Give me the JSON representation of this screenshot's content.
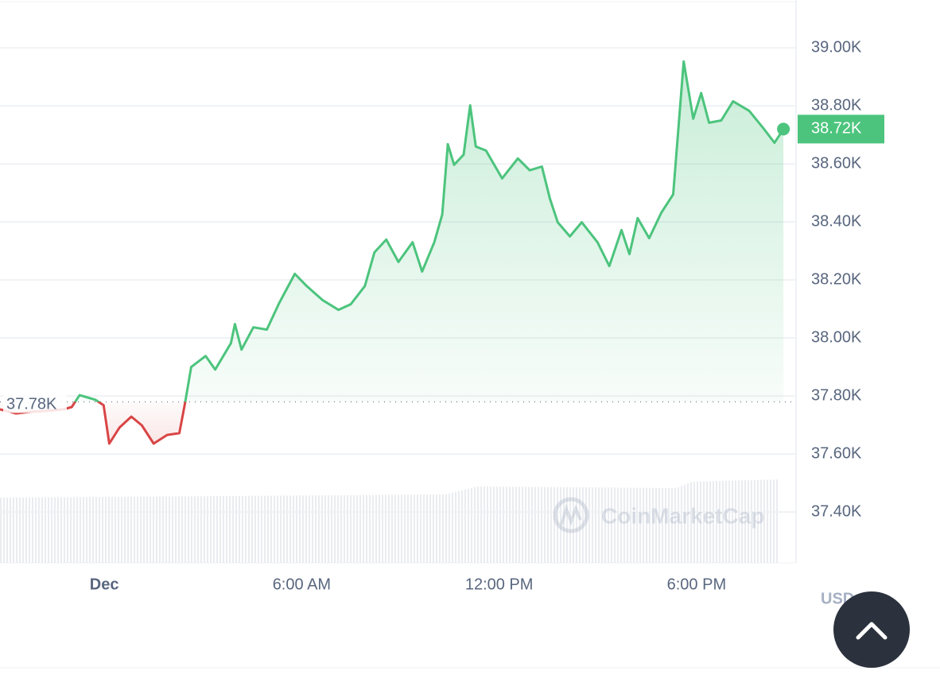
{
  "chart_data": {
    "type": "line",
    "x": [
      -3.17,
      -2.69,
      -2.2,
      -1.72,
      -1.24,
      -0.99,
      -0.75,
      -0.51,
      -0.27,
      -0.02,
      0.15,
      0.46,
      0.82,
      1.14,
      1.5,
      1.91,
      2.28,
      2.45,
      2.64,
      3.08,
      3.37,
      3.85,
      3.97,
      4.17,
      4.53,
      4.94,
      5.31,
      5.79,
      6.15,
      6.64,
      7.12,
      7.49,
      7.92,
      8.21,
      8.57,
      8.94,
      9.37,
      9.66,
      10.03,
      10.27,
      10.44,
      10.63,
      10.92,
      11.12,
      11.29,
      11.6,
      12.09,
      12.57,
      12.93,
      13.3,
      13.54,
      13.78,
      14.15,
      14.51,
      14.99,
      15.35,
      15.72,
      15.96,
      16.21,
      16.56,
      16.93,
      17.29,
      17.61,
      17.9,
      18.14,
      18.38,
      18.75,
      19.11,
      19.6,
      20.03,
      20.37,
      20.64
    ],
    "values": [
      37754,
      37740,
      37746,
      37749,
      37754,
      37762,
      37803,
      37795,
      37787,
      37768,
      37636,
      37691,
      37729,
      37699,
      37636,
      37666,
      37672,
      37773,
      37900,
      37938,
      37891,
      37982,
      38048,
      37960,
      38037,
      38029,
      38119,
      38221,
      38179,
      38130,
      38097,
      38116,
      38179,
      38295,
      38339,
      38262,
      38330,
      38229,
      38330,
      38426,
      38668,
      38597,
      38632,
      38802,
      38660,
      38646,
      38550,
      38619,
      38578,
      38591,
      38481,
      38399,
      38350,
      38399,
      38330,
      38248,
      38372,
      38289,
      38413,
      38344,
      38432,
      38495,
      38953,
      38756,
      38844,
      38742,
      38750,
      38816,
      38783,
      38723,
      38673,
      38720
    ],
    "up_color": "#4cc47d",
    "down_color": "#d94545",
    "baseline": {
      "value": 37780,
      "label": "37.78K"
    },
    "current": {
      "value": 38720,
      "label": "38.72K"
    },
    "xlim": [
      -3.17,
      21
    ],
    "xticks": [
      {
        "value": 0,
        "label": "Dec"
      },
      {
        "value": 6,
        "label": "6:00 AM"
      },
      {
        "value": 12,
        "label": "12:00 PM"
      },
      {
        "value": 18,
        "label": "6:00 PM"
      }
    ],
    "ylim": [
      37225,
      39165
    ],
    "yticks": [
      {
        "value": 39000,
        "label": "39.00K"
      },
      {
        "value": 38800,
        "label": "38.80K"
      },
      {
        "value": 38600,
        "label": "38.60K"
      },
      {
        "value": 38400,
        "label": "38.40K"
      },
      {
        "value": 38200,
        "label": "38.20K"
      },
      {
        "value": 38000,
        "label": "38.00K"
      },
      {
        "value": 37800,
        "label": "37.80K"
      },
      {
        "value": 37600,
        "label": "37.60K"
      },
      {
        "value": 37400,
        "label": "37.40K"
      }
    ],
    "grid": true,
    "watermark": "CoinMarketCap",
    "currency": "USD"
  }
}
